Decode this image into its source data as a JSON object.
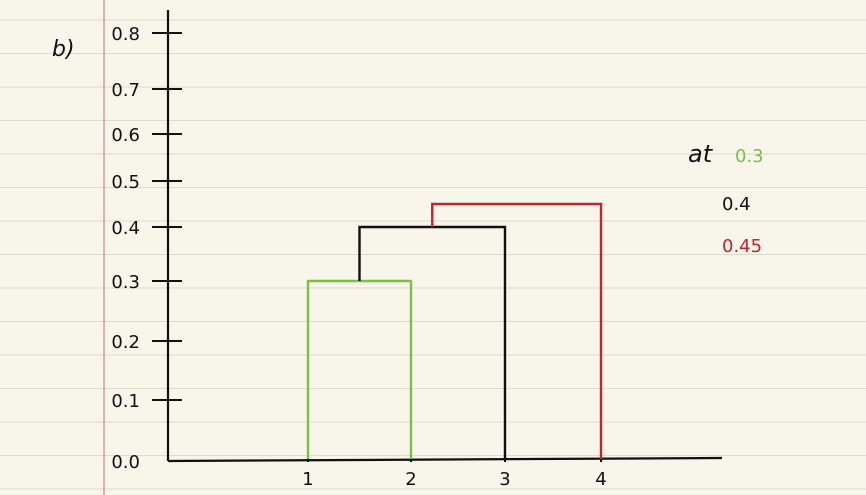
{
  "part_label": "b)",
  "colors": {
    "paper": "#f8f5ea",
    "rule": "#d9dccf",
    "margin": "#c98a8a",
    "ink": "#111111",
    "green": "#7bc043",
    "red": "#c8232c"
  },
  "chart_data": {
    "type": "dendrogram",
    "y_ticks": [
      "0.0",
      "0.1",
      "0.2",
      "0.3",
      "0.4",
      "0.5",
      "0.6",
      "0.7",
      "0.8"
    ],
    "x_labels": [
      "1",
      "2",
      "3",
      "4"
    ],
    "ylim": [
      0,
      0.8
    ],
    "merges": [
      {
        "height": 0.3,
        "color": "green",
        "joins": [
          "1",
          "2"
        ]
      },
      {
        "height": 0.4,
        "color": "black",
        "joins": [
          "{1,2}",
          "3"
        ]
      },
      {
        "height": 0.45,
        "color": "red",
        "joins": [
          "{1,2,3}",
          "4"
        ]
      }
    ],
    "legend": {
      "prefix": "at",
      "entries": [
        {
          "label": "0.3",
          "color": "green"
        },
        {
          "label": "0.4",
          "color": "black"
        },
        {
          "label": "0.45",
          "color": "red"
        }
      ]
    }
  }
}
